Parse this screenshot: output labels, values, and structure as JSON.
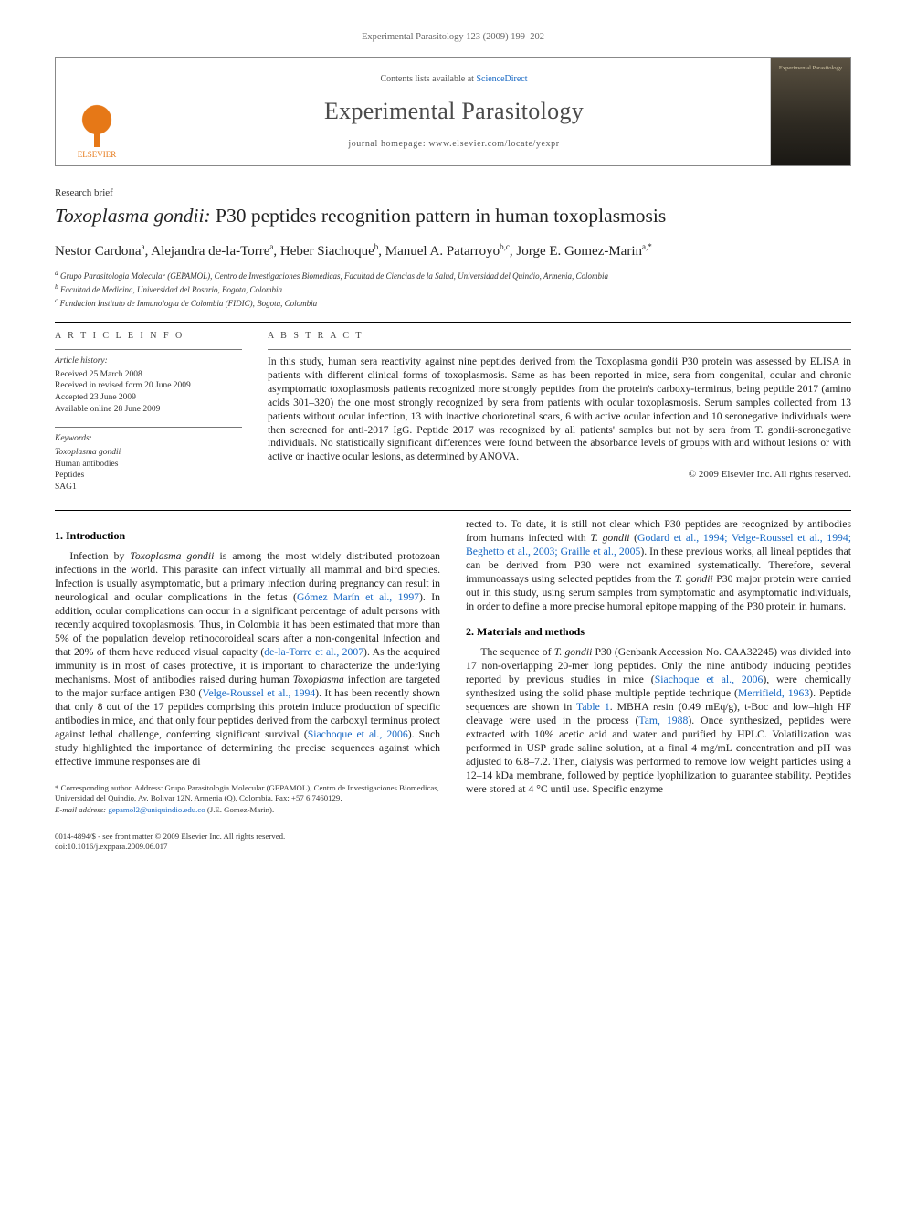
{
  "running_head": "Experimental Parasitology 123 (2009) 199–202",
  "header": {
    "contents_prefix": "Contents lists available at ",
    "contents_link": "ScienceDirect",
    "journal_title": "Experimental Parasitology",
    "homepage_prefix": "journal homepage: ",
    "homepage_url": "www.elsevier.com/locate/yexpr",
    "publisher_name": "ELSEVIER",
    "cover_label": "Experimental Parasitology"
  },
  "article": {
    "type": "Research brief",
    "title_italic": "Toxoplasma gondii:",
    "title_rest": " P30 peptides recognition pattern in human toxoplasmosis",
    "authors_html": "Nestor Cardona ",
    "authors": [
      {
        "name": "Nestor Cardona",
        "aff": "a"
      },
      {
        "name": "Alejandra de-la-Torre",
        "aff": "a"
      },
      {
        "name": "Heber Siachoque",
        "aff": "b"
      },
      {
        "name": "Manuel A. Patarroyo",
        "aff": "b,c"
      },
      {
        "name": "Jorge E. Gomez-Marin",
        "aff": "a,*"
      }
    ],
    "affiliations": [
      {
        "key": "a",
        "text": "Grupo Parasitologia Molecular (GEPAMOL), Centro de Investigaciones Biomedicas, Facultad de Ciencias de la Salud, Universidad del Quindio, Armenia, Colombia"
      },
      {
        "key": "b",
        "text": "Facultad de Medicina, Universidad del Rosario, Bogota, Colombia"
      },
      {
        "key": "c",
        "text": "Fundacion Instituto de Inmunologia de Colombia (FIDIC), Bogota, Colombia"
      }
    ]
  },
  "info": {
    "heading": "A R T I C L E   I N F O",
    "history_label": "Article history:",
    "history": [
      "Received 25 March 2008",
      "Received in revised form 20 June 2009",
      "Accepted 23 June 2009",
      "Available online 28 June 2009"
    ],
    "keywords_label": "Keywords:",
    "keywords": [
      "Toxoplasma gondii",
      "Human antibodies",
      "Peptides",
      "SAG1"
    ]
  },
  "abstract": {
    "heading": "A B S T R A C T",
    "text": "In this study, human sera reactivity against nine peptides derived from the Toxoplasma gondii P30 protein was assessed by ELISA in patients with different clinical forms of toxoplasmosis. Same as has been reported in mice, sera from congenital, ocular and chronic asymptomatic toxoplasmosis patients recognized more strongly peptides from the protein's carboxy-terminus, being peptide 2017 (amino acids 301–320) the one most strongly recognized by sera from patients with ocular toxoplasmosis. Serum samples collected from 13 patients without ocular infection, 13 with inactive chorioretinal scars, 6 with active ocular infection and 10 seronegative individuals were then screened for anti-2017 IgG. Peptide 2017 was recognized by all patients' samples but not by sera from T. gondii-seronegative individuals. No statistically significant differences were found between the absorbance levels of groups with and without lesions or with active or inactive ocular lesions, as determined by ANOVA.",
    "copyright": "© 2009 Elsevier Inc. All rights reserved."
  },
  "sections": {
    "intro_heading": "1. Introduction",
    "intro_p1a": "Infection by ",
    "intro_p1b": "Toxoplasma gondii",
    "intro_p1c": " is among the most widely distributed protozoan infections in the world. This parasite can infect virtually all mammal and bird species. Infection is usually asymptomatic, but a primary infection during pregnancy can result in neurological and ocular complications in the fetus (",
    "intro_ref1": "Gómez Marín et al., 1997",
    "intro_p1d": "). In addition, ocular complications can occur in a significant percentage of adult persons with recently acquired toxoplasmosis. Thus, in Colombia it has been estimated that more than 5% of the population develop retinocoroideal scars after a non-congenital infection and that 20% of them have reduced visual capacity (",
    "intro_ref2": "de-la-Torre et al., 2007",
    "intro_p1e": "). As the acquired immunity is in most of cases protective, it is important to characterize the underlying mechanisms. Most of antibodies raised during human ",
    "intro_p1f": "Toxoplasma",
    "intro_p1g": " infection are targeted to the major surface antigen P30 (",
    "intro_ref3": "Velge-Roussel et al., 1994",
    "intro_p1h": "). It has been recently shown that only 8 out of the 17 peptides comprising this protein induce production of specific antibodies in mice, and that only four peptides derived from the carboxyl terminus protect against lethal challenge, conferring significant survival (",
    "intro_ref4": "Siachoque et al., 2006",
    "intro_p1i": "). Such study highlighted the importance of determining the precise sequences against which effective immune responses are di",
    "intro_p2a": "rected to. To date, it is still not clear which P30 peptides are recognized by antibodies from humans infected with ",
    "intro_p2b": "T. gondii",
    "intro_p2c": " (",
    "intro_ref5": "Godard et al., 1994; Velge-Roussel et al., 1994; Beghetto et al., 2003; Graille et al., 2005",
    "intro_p2d": "). In these previous works, all lineal peptides that can be derived from P30 were not examined systematically. Therefore, several immunoassays using selected peptides from the ",
    "intro_p2e": "T. gondii",
    "intro_p2f": " P30 major protein were carried out in this study, using serum samples from symptomatic and asymptomatic individuals, in order to define a more precise humoral epitope mapping of the P30 protein in humans.",
    "methods_heading": "2. Materials and methods",
    "methods_p1a": "The sequence of ",
    "methods_p1b": "T. gondii",
    "methods_p1c": " P30 (Genbank Accession No. CAA32245) was divided into 17 non-overlapping 20-mer long peptides. Only the nine antibody inducing peptides reported by previous studies in mice (",
    "methods_ref1": "Siachoque et al., 2006",
    "methods_p1d": "), were chemically synthesized using the solid phase multiple peptide technique (",
    "methods_ref2": "Merrifield, 1963",
    "methods_p1e": "). Peptide sequences are shown in ",
    "methods_ref3": "Table 1",
    "methods_p1f": ". MBHA resin (0.49 mEq/g), t-Boc and low–high HF cleavage were used in the process (",
    "methods_ref4": "Tam, 1988",
    "methods_p1g": "). Once synthesized, peptides were extracted with 10% acetic acid and water and purified by HPLC. Volatilization was performed in USP grade saline solution, at a final 4 mg/mL concentration and pH was adjusted to 6.8–7.2. Then, dialysis was performed to remove low weight particles using a 12–14 kDa membrane, followed by peptide lyophilization to guarantee stability. Peptides were stored at 4 °C until use. Specific enzyme"
  },
  "footnote": {
    "corr_label": "* Corresponding author.",
    "corr_text": " Address: Grupo Parasitologia Molecular (GEPAMOL), Centro de Investigaciones Biomedicas, Universidad del Quindio, Av. Bolivar 12N, Armenia (Q), Colombia. Fax: +57 6 7460129.",
    "email_label": "E-mail address: ",
    "email": "gepamol2@uniquindio.edu.co",
    "email_suffix": " (J.E. Gomez-Marin)."
  },
  "bottom": {
    "line1": "0014-4894/$ - see front matter © 2009 Elsevier Inc. All rights reserved.",
    "line2": "doi:10.1016/j.exppara.2009.06.017"
  },
  "colors": {
    "link": "#1768c4",
    "elsevier": "#e67817",
    "text": "#222222",
    "rule": "#000000",
    "muted": "#646464"
  }
}
